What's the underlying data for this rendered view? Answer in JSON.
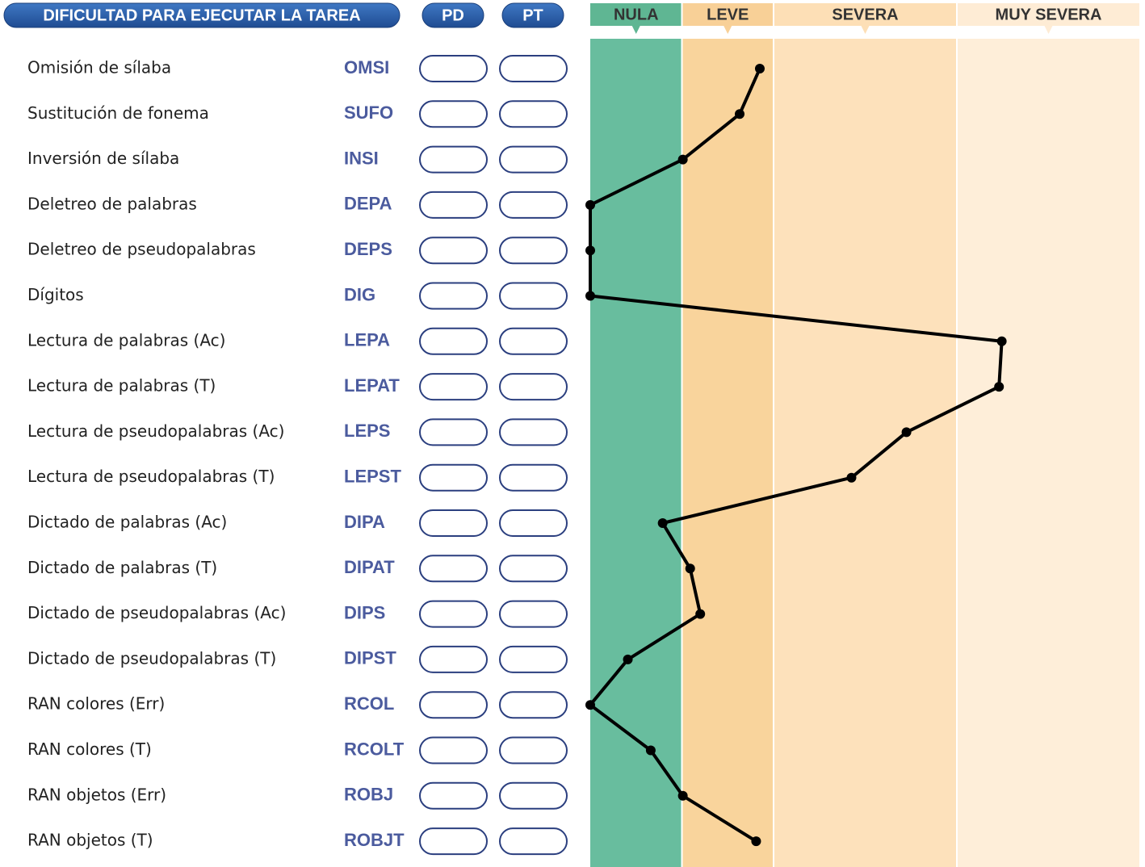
{
  "chart_data": {
    "type": "line",
    "title": "DIFICULTAD PARA EJECUTAR LA TAREA",
    "columns": [
      "PD",
      "PT"
    ],
    "categories": [
      "Omisión de sílaba",
      "Sustitución de fonema",
      "Inversión de sílaba",
      "Deletreo de palabras",
      "Deletreo de pseudopalabras",
      "Dígitos",
      "Lectura de palabras (Ac)",
      "Lectura de palabras (T)",
      "Lectura de pseudopalabras (Ac)",
      "Lectura de pseudopalabras (T)",
      "Dictado de palabras (Ac)",
      "Dictado de palabras (T)",
      "Dictado de pseudopalabras (Ac)",
      "Dictado de pseudopalabras (T)",
      "RAN colores (Err)",
      "RAN colores (T)",
      "RAN objetos (Err)",
      "RAN objetos (T)"
    ],
    "codes": [
      "OMSI",
      "SUFO",
      "INSI",
      "DEPA",
      "DEPS",
      "DIG",
      "LEPA",
      "LEPAT",
      "LEPS",
      "LEPST",
      "DIPA",
      "DIPAT",
      "DIPS",
      "DIPST",
      "RCOL",
      "RCOLT",
      "ROBJ",
      "ROBJT"
    ],
    "values": [
      1.85,
      1.63,
      1.01,
      0,
      0,
      0,
      4.49,
      4.46,
      3.45,
      2.85,
      0.79,
      1.09,
      1.2,
      0.41,
      0,
      0.66,
      1.01,
      1.81
    ],
    "color": "#000000",
    "xlim": [
      0,
      6
    ],
    "bands": [
      {
        "name": "NULA",
        "from": 0,
        "to": 1,
        "color": "#68bd9e",
        "header_color": "#5fb693"
      },
      {
        "name": "LEVE",
        "from": 1,
        "to": 2,
        "color": "#f9d49c",
        "header_color": "#f8d097"
      },
      {
        "name": "SEVERA",
        "from": 2,
        "to": 4,
        "color": "#fde1bb",
        "header_color": "#fddfb6"
      },
      {
        "name": "MUY SEVERA",
        "from": 4,
        "to": 6,
        "color": "#feeed9",
        "header_color": "#feecd5"
      }
    ]
  }
}
